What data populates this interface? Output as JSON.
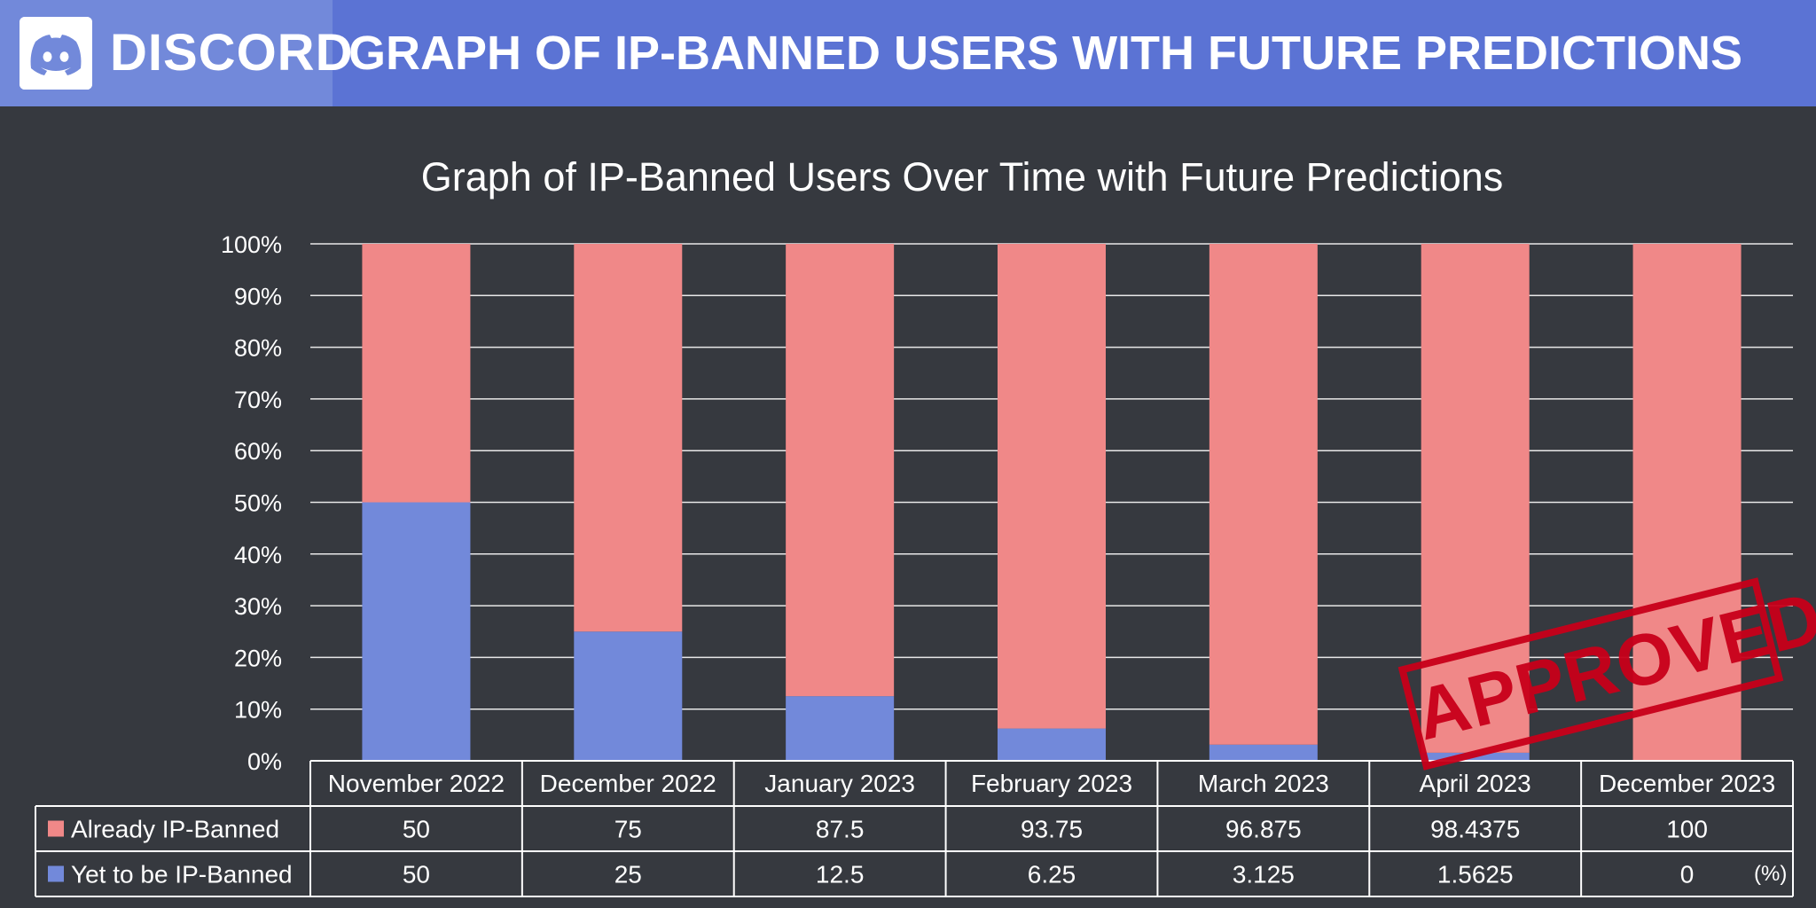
{
  "header": {
    "brand": "DISCORD",
    "title": "GRAPH OF IP-BANNED USERS WITH FUTURE PREDICTIONS",
    "logo_icon": "discord-logo-icon"
  },
  "stamp": {
    "text": "APPROVED"
  },
  "colors": {
    "background": "#36393f",
    "header": "#5b73d4",
    "logo_block": "#7289da",
    "already": "#f08888",
    "yet": "#7289da",
    "stamp": "#c8001a"
  },
  "chart_data": {
    "type": "bar",
    "stacked": true,
    "title": "Graph of IP-Banned Users Over Time with Future Predictions",
    "categories": [
      "November 2022",
      "December 2022",
      "January 2023",
      "February 2023",
      "March 2023",
      "April 2023",
      "December 2023"
    ],
    "series": [
      {
        "name": "Already IP-Banned",
        "values": [
          50,
          75,
          87.5,
          93.75,
          96.875,
          98.4375,
          100
        ],
        "labels": [
          "50",
          "75",
          "87.5",
          "93.75",
          "96.875",
          "98.4375",
          "100"
        ]
      },
      {
        "name": "Yet to be IP-Banned",
        "values": [
          50,
          25,
          12.5,
          6.25,
          3.125,
          1.5625,
          0
        ],
        "labels": [
          "50",
          "25",
          "12.5",
          "6.25",
          "3.125",
          "1.5625",
          "0"
        ]
      }
    ],
    "ylim": [
      0,
      100
    ],
    "yticks": [
      "0%",
      "10%",
      "20%",
      "30%",
      "40%",
      "50%",
      "60%",
      "70%",
      "80%",
      "90%",
      "100%"
    ],
    "grid": true,
    "legend": "data-table",
    "unit": "(%)"
  }
}
